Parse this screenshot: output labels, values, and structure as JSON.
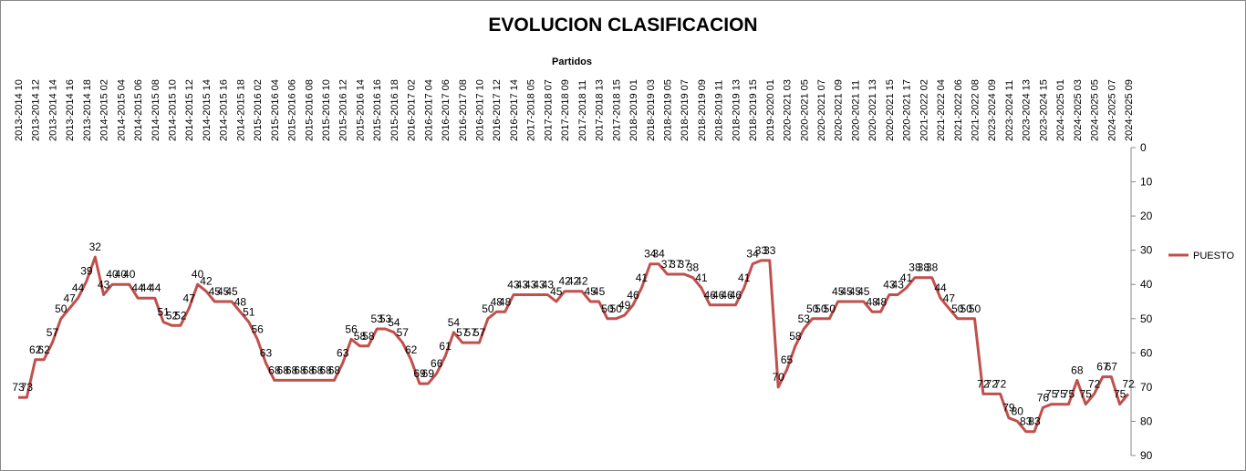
{
  "chart_data": {
    "type": "line",
    "title": "EVOLUCION CLASIFICACION",
    "x_label": "Partidos",
    "categories": [
      "2013-2014 10",
      null,
      "2013-2014 12",
      null,
      "2013-2014 14",
      null,
      "2013-2014 16",
      null,
      "2013-2014 18",
      null,
      "2014-2015 02",
      null,
      "2014-2015 04",
      null,
      "2014-2015 06",
      null,
      "2014-2015 08",
      null,
      "2014-2015 10",
      null,
      "2014-2015 12",
      null,
      "2014-2015 14",
      null,
      "2014-2015 16",
      null,
      "2014-2015 18",
      null,
      "2015-2016 02",
      null,
      "2015-2016 04",
      null,
      "2015-2016 06",
      null,
      "2015-2016 08",
      null,
      "2015-2016 10",
      null,
      "2015-2016 12",
      null,
      "2015-2016 14",
      null,
      "2015-2016 16",
      null,
      "2015-2016 18",
      null,
      "2016-2017 02",
      null,
      "2016-2017 04",
      null,
      "2016-2017 06",
      null,
      "2016-2017 08",
      null,
      "2016-2017 10",
      null,
      "2016-2017 12",
      null,
      "2016-2017 14",
      null,
      "2017-2018 05",
      null,
      "2017-2018 07",
      null,
      "2017-2018 09",
      null,
      "2017-2018 11",
      null,
      "2017-2018 13",
      null,
      "2017-2018 15",
      null,
      "2018-2019 01",
      null,
      "2018-2019 03",
      null,
      "2018-2019 05",
      null,
      "2018-2019 07",
      null,
      "2018-2019 09",
      null,
      "2018-2019 11",
      null,
      "2018-2019 13",
      null,
      "2018-2019 15",
      null,
      "2019-2020 01",
      null,
      "2020-2021 03",
      null,
      "2020-2021 05",
      null,
      "2020-2021 07",
      null,
      "2020-2021 09",
      null,
      "2020-2021 11",
      null,
      "2020-2021 13",
      null,
      "2020-2021 15",
      null,
      "2020-2021 17",
      null,
      "2021-2022 02",
      null,
      "2021-2022 04",
      null,
      "2021-2022 06",
      null,
      "2021-2022 08",
      null,
      "2023-2024 09",
      null,
      "2023-2024 11",
      null,
      "2023-2024 13",
      null,
      "2023-2024 15",
      null,
      "2024-2025 01",
      null,
      "2024-2025 03",
      null,
      "2024-2025 05",
      null,
      "2024-2025 07",
      null,
      "2024-2025 09"
    ],
    "series": [
      {
        "name": "PUESTO",
        "color": "#c0504d",
        "values": [
          73,
          73,
          62,
          62,
          57,
          50,
          47,
          44,
          39,
          32,
          43,
          40,
          40,
          40,
          44,
          44,
          44,
          51,
          52,
          52,
          47,
          40,
          42,
          45,
          45,
          45,
          48,
          51,
          56,
          63,
          68,
          68,
          68,
          68,
          68,
          68,
          68,
          68,
          63,
          56,
          58,
          58,
          53,
          53,
          54,
          57,
          62,
          69,
          69,
          66,
          61,
          54,
          57,
          57,
          57,
          50,
          48,
          48,
          43,
          43,
          43,
          43,
          43,
          45,
          42,
          42,
          42,
          45,
          45,
          50,
          50,
          49,
          46,
          41,
          34,
          34,
          37,
          37,
          37,
          38,
          41,
          46,
          46,
          46,
          46,
          41,
          34,
          33,
          33,
          70,
          65,
          58,
          53,
          50,
          50,
          50,
          45,
          45,
          45,
          45,
          48,
          48,
          43,
          43,
          41,
          38,
          38,
          38,
          44,
          47,
          50,
          50,
          50,
          72,
          72,
          72,
          79,
          80,
          83,
          83,
          76,
          75,
          75,
          75,
          68,
          75,
          72,
          67,
          67,
          75,
          72
        ]
      }
    ],
    "ylim": [
      0,
      90
    ],
    "yticks": [
      0,
      10,
      20,
      30,
      40,
      50,
      60,
      70,
      80,
      90
    ],
    "y_inverted": true,
    "y_axis_side": "right",
    "legend": "right",
    "data_labels": true
  }
}
